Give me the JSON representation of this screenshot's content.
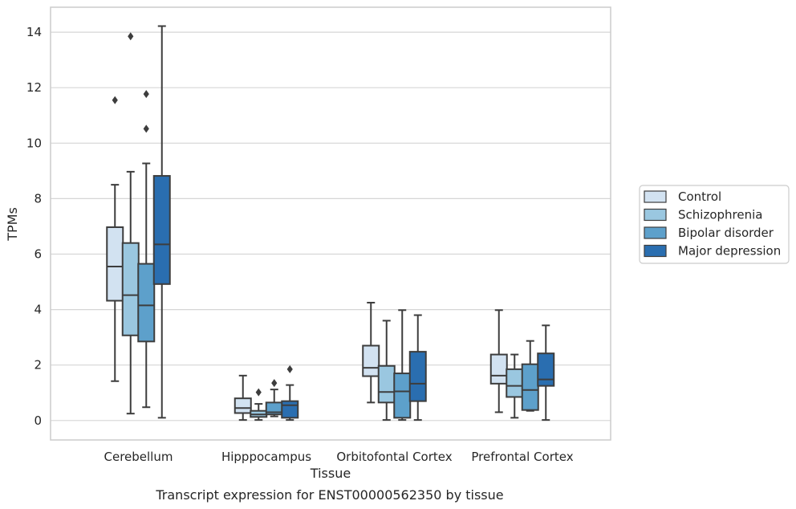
{
  "caption": "Transcript expression for ENST00000562350 by tissue",
  "chart_data": {
    "type": "box",
    "xlabel": "Tissue",
    "ylabel": "TPMs",
    "ylim": [
      -0.7,
      14.9
    ],
    "yticks": [
      0,
      2,
      4,
      6,
      8,
      10,
      12,
      14
    ],
    "grid": "horizontal",
    "legend_position": "right",
    "categories": [
      "Cerebellum",
      "Hipppocampus",
      "Orbitofontal Cortex",
      "Prefrontal Cortex"
    ],
    "series": [
      {
        "name": "Control",
        "color": "#d2e2f1",
        "boxes": [
          {
            "whisker_low": 1.42,
            "q1": 4.32,
            "median": 5.55,
            "q3": 6.97,
            "whisker_high": 8.5,
            "outliers": [
              11.55
            ]
          },
          {
            "whisker_low": 0.02,
            "q1": 0.27,
            "median": 0.45,
            "q3": 0.8,
            "whisker_high": 1.62,
            "outliers": []
          },
          {
            "whisker_low": 0.65,
            "q1": 1.6,
            "median": 1.9,
            "q3": 2.7,
            "whisker_high": 4.25,
            "outliers": []
          },
          {
            "whisker_low": 0.3,
            "q1": 1.33,
            "median": 1.62,
            "q3": 2.38,
            "whisker_high": 3.98,
            "outliers": []
          }
        ]
      },
      {
        "name": "Schizophrenia",
        "color": "#9ac7e0",
        "boxes": [
          {
            "whisker_low": 0.25,
            "q1": 3.07,
            "median": 4.52,
            "q3": 6.4,
            "whisker_high": 8.97,
            "outliers": [
              13.85
            ]
          },
          {
            "whisker_low": 0.02,
            "q1": 0.13,
            "median": 0.22,
            "q3": 0.35,
            "whisker_high": 0.6,
            "outliers": [
              1.02
            ]
          },
          {
            "whisker_low": 0.02,
            "q1": 0.65,
            "median": 1.03,
            "q3": 1.97,
            "whisker_high": 3.6,
            "outliers": []
          },
          {
            "whisker_low": 0.1,
            "q1": 0.85,
            "median": 1.25,
            "q3": 1.85,
            "whisker_high": 2.38,
            "outliers": []
          }
        ]
      },
      {
        "name": "Bipolar disorder",
        "color": "#5da0cb",
        "boxes": [
          {
            "whisker_low": 0.48,
            "q1": 2.85,
            "median": 4.15,
            "q3": 5.65,
            "whisker_high": 9.27,
            "outliers": [
              11.77,
              10.52
            ]
          },
          {
            "whisker_low": 0.15,
            "q1": 0.22,
            "median": 0.3,
            "q3": 0.65,
            "whisker_high": 1.12,
            "outliers": [
              1.35
            ]
          },
          {
            "whisker_low": 0.02,
            "q1": 0.1,
            "median": 1.05,
            "q3": 1.7,
            "whisker_high": 3.98,
            "outliers": []
          },
          {
            "whisker_low": 0.35,
            "q1": 0.38,
            "median": 1.1,
            "q3": 2.03,
            "whisker_high": 2.87,
            "outliers": []
          }
        ]
      },
      {
        "name": "Major depression",
        "color": "#2a6eb0",
        "boxes": [
          {
            "whisker_low": 0.1,
            "q1": 4.92,
            "median": 6.35,
            "q3": 8.82,
            "whisker_high": 14.22,
            "outliers": []
          },
          {
            "whisker_low": 0.02,
            "q1": 0.1,
            "median": 0.55,
            "q3": 0.7,
            "whisker_high": 1.28,
            "outliers": [
              1.85
            ]
          },
          {
            "whisker_low": 0.02,
            "q1": 0.7,
            "median": 1.33,
            "q3": 2.48,
            "whisker_high": 3.8,
            "outliers": []
          },
          {
            "whisker_low": 0.02,
            "q1": 1.25,
            "median": 1.48,
            "q3": 2.42,
            "whisker_high": 3.43,
            "outliers": []
          }
        ]
      }
    ]
  }
}
